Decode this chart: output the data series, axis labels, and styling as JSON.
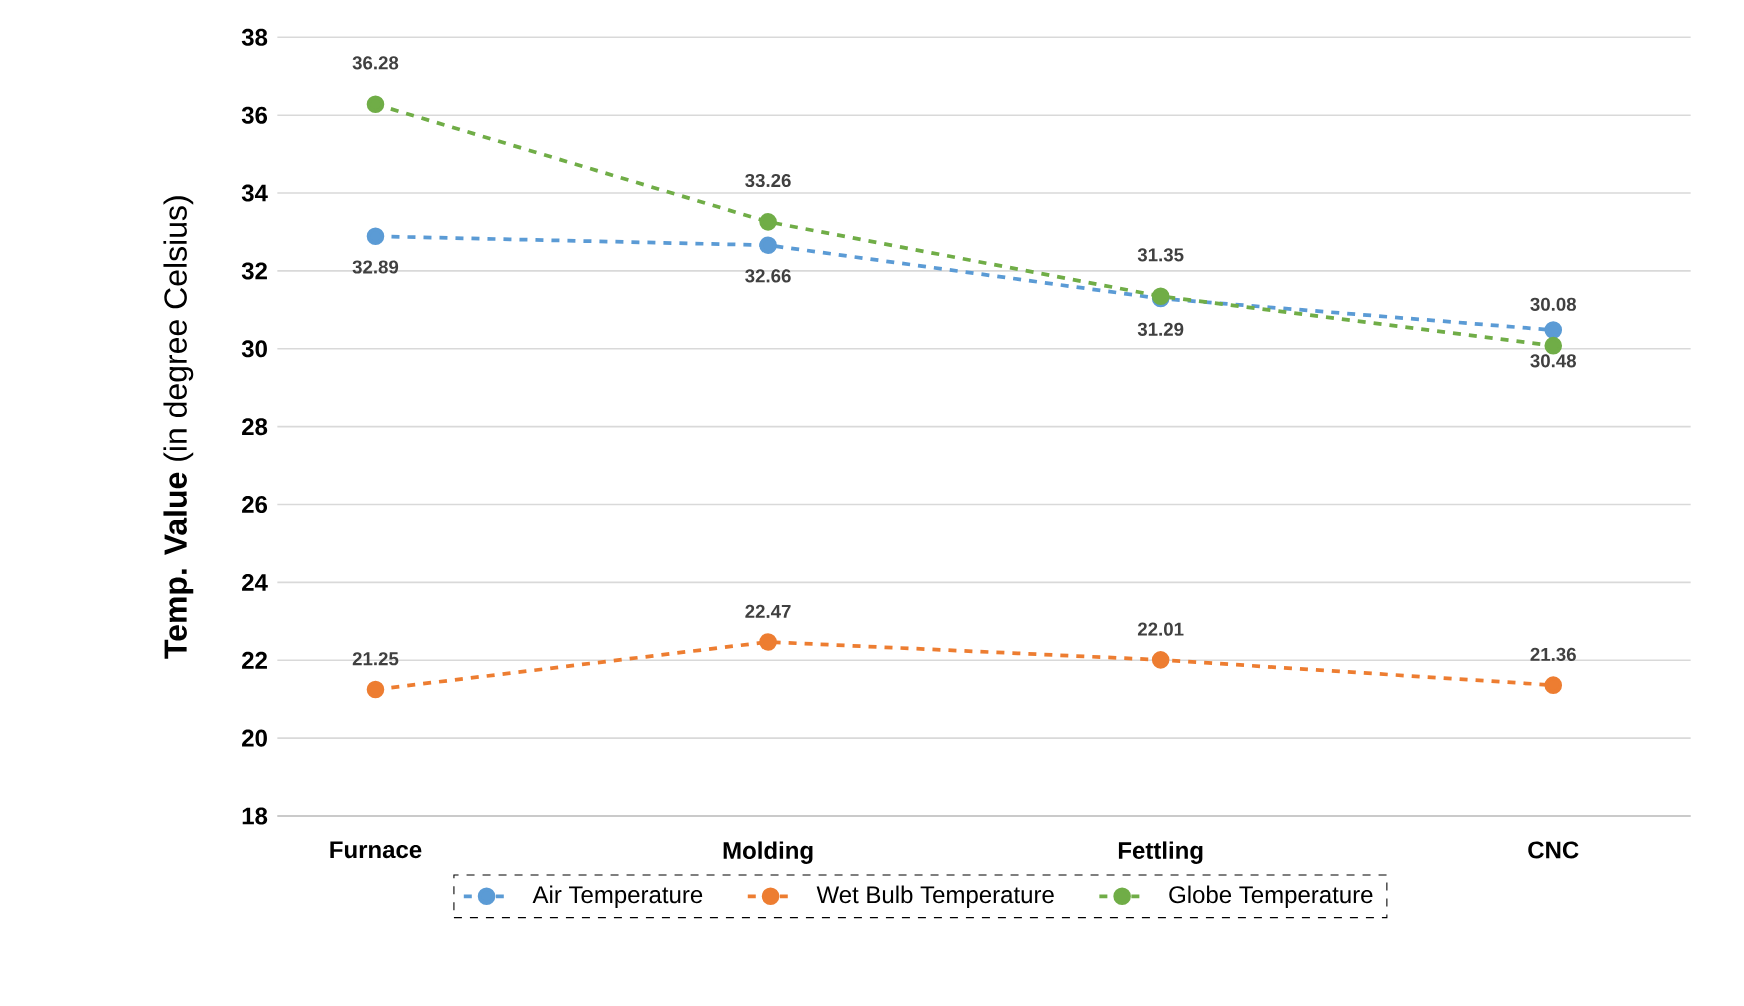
{
  "chart_data": {
    "type": "line",
    "ylabel": "**Temp. Value** (in degree Celsius)",
    "categories": [
      "Furnace",
      "Molding",
      "Fettling",
      "CNC"
    ],
    "series": [
      {
        "name": "Air Temperature",
        "color": "#5b9bd5",
        "values": [
          32.89,
          32.66,
          31.29,
          30.48
        ]
      },
      {
        "name": "Wet Bulb Temperature",
        "color": "#ed7d31",
        "values": [
          21.25,
          22.47,
          22.01,
          21.36
        ]
      },
      {
        "name": "Globe Temperature",
        "color": "#70ad47",
        "values": [
          36.28,
          33.26,
          31.35,
          30.08
        ]
      }
    ],
    "ylim": [
      18,
      38
    ],
    "yticks": [
      18,
      20,
      22,
      24,
      26,
      28,
      30,
      32,
      34,
      36,
      38
    ],
    "grid": "y",
    "legend": "bottom",
    "marker": "circle",
    "line_style": "dashed",
    "data_labels": true
  }
}
